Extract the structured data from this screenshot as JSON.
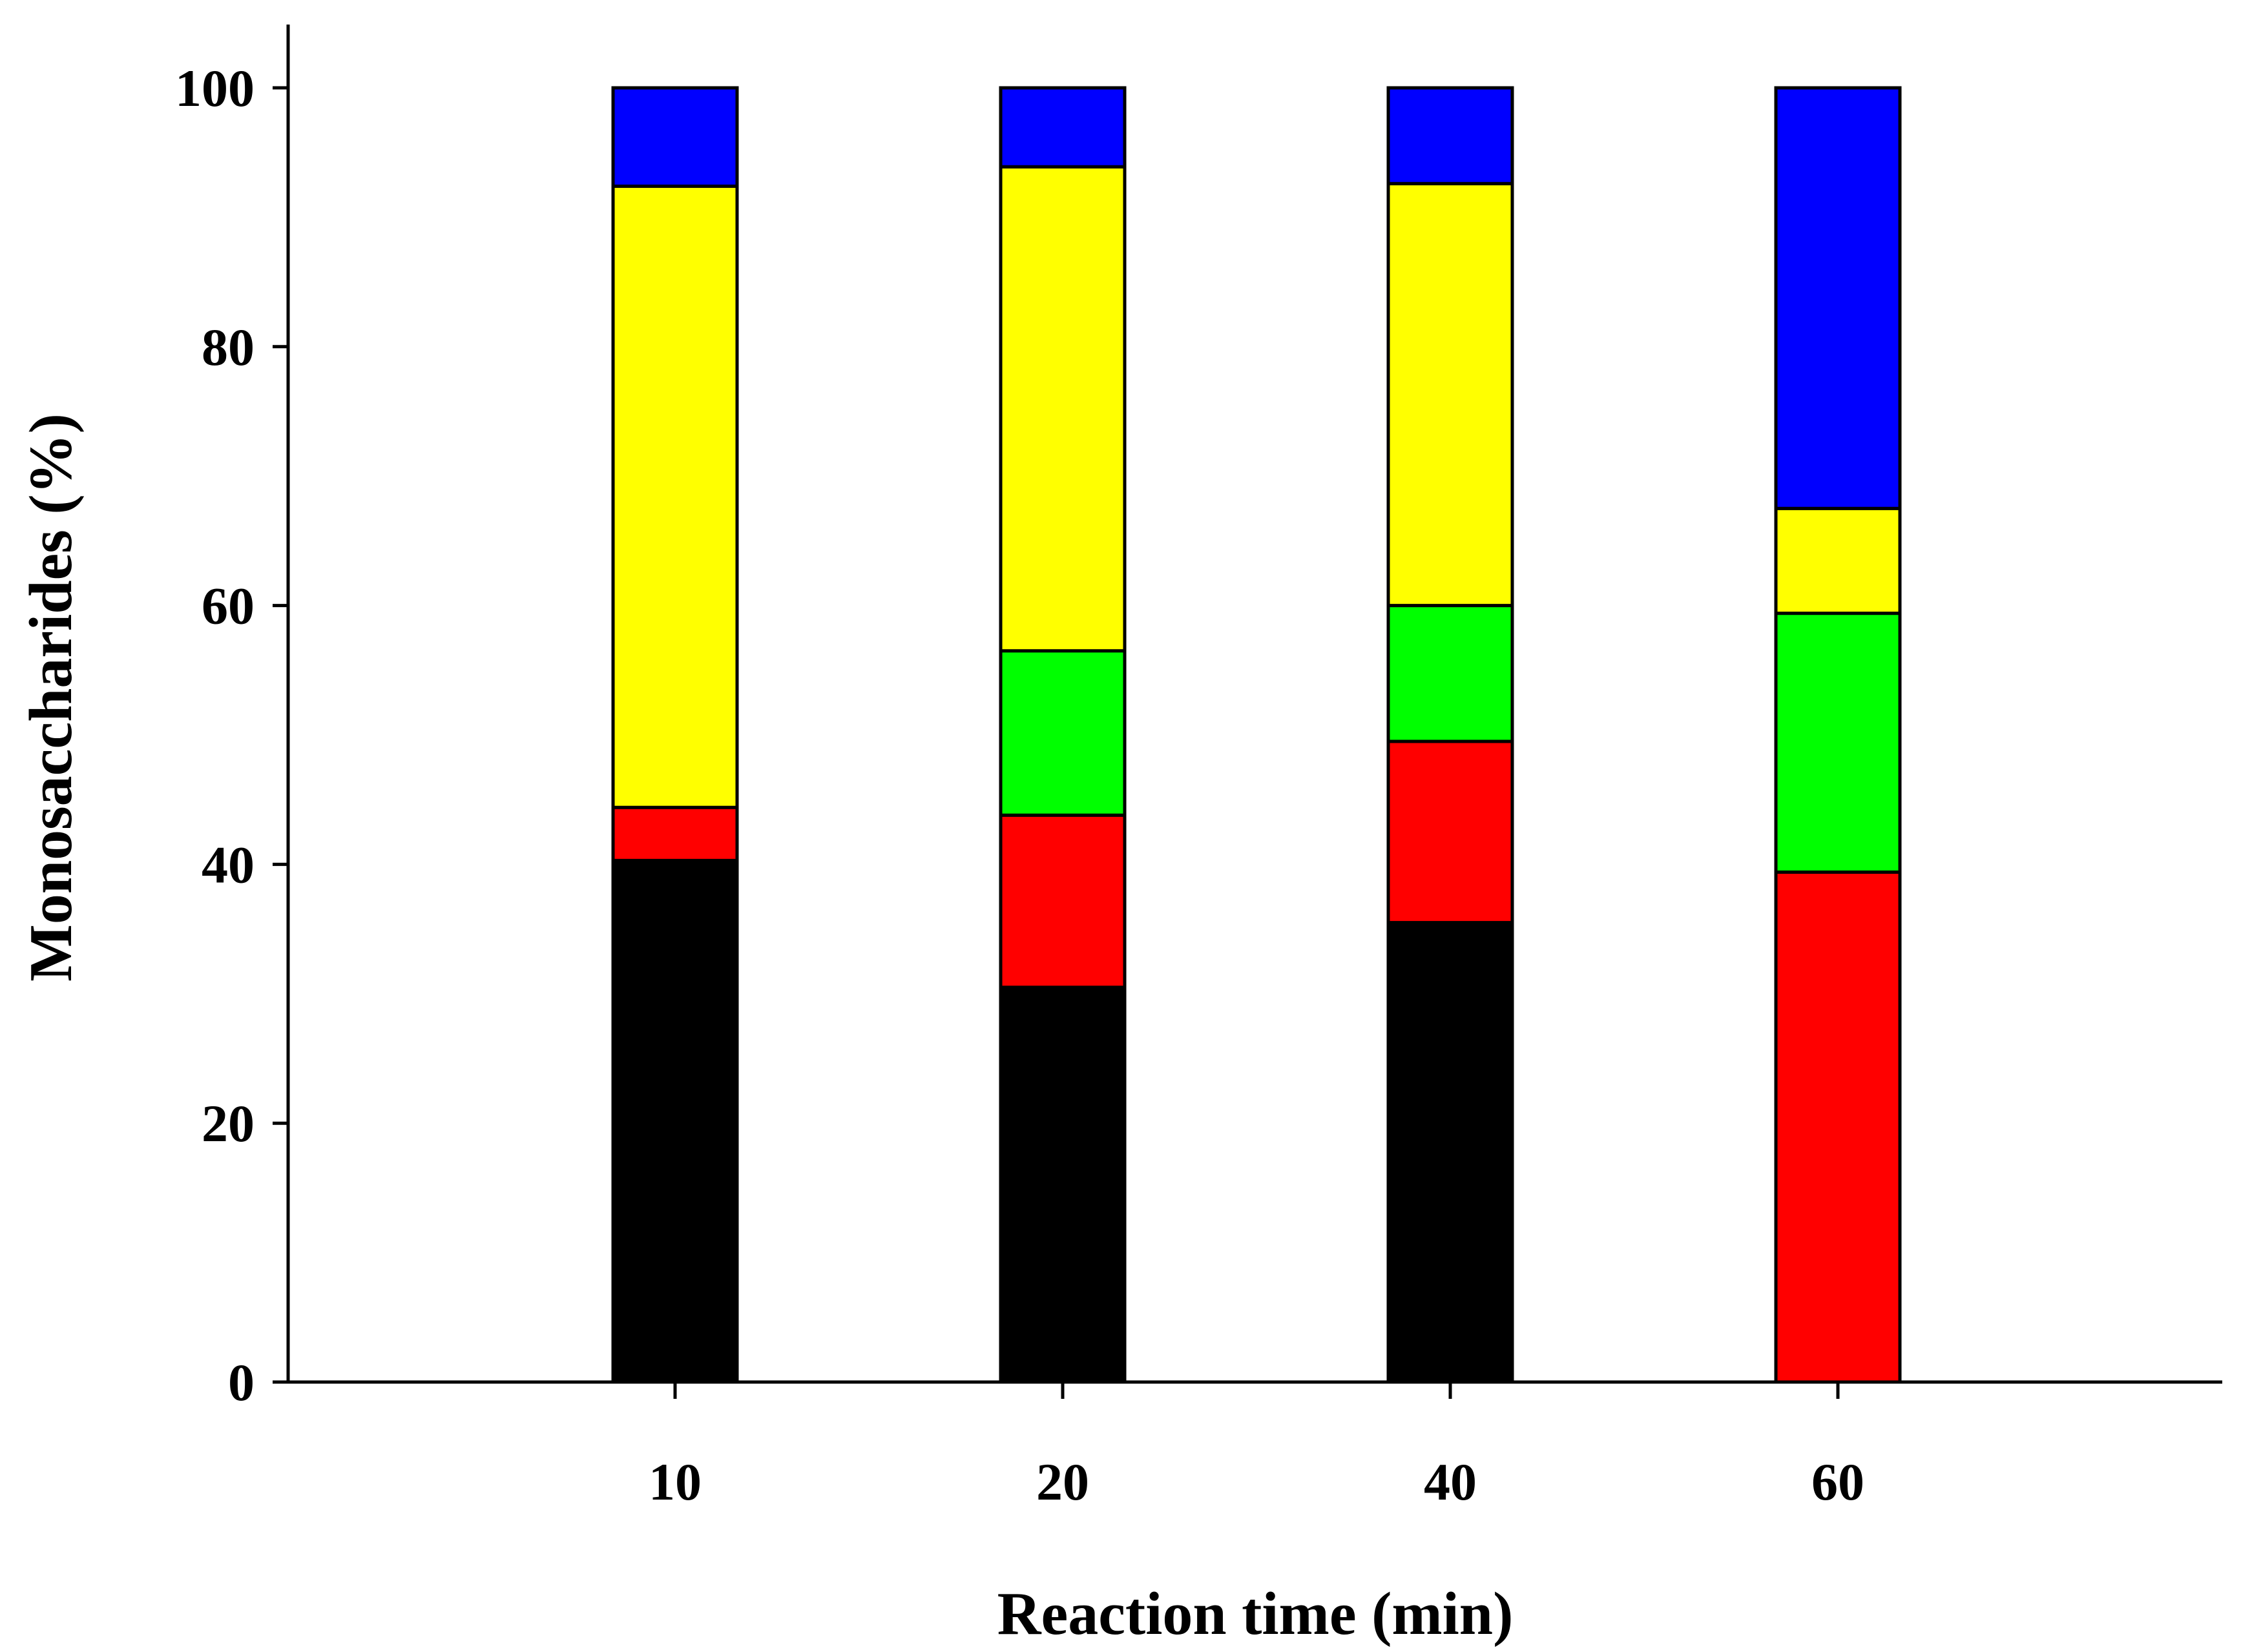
{
  "chart_data": {
    "type": "bar",
    "stacked": true,
    "title": "",
    "xlabel": "Reaction time (min)",
    "ylabel": "Monosaccharides (%)",
    "categories": [
      "10",
      "20",
      "40",
      "60"
    ],
    "ylim": [
      0,
      100
    ],
    "yticks": [
      0,
      20,
      40,
      60,
      80,
      100
    ],
    "series": [
      {
        "name": "black",
        "color": "#000000",
        "values": [
          40.3,
          30.5,
          35.5,
          0
        ]
      },
      {
        "name": "red",
        "color": "#ff0000",
        "values": [
          4.1,
          13.3,
          14.0,
          39.4
        ]
      },
      {
        "name": "green",
        "color": "#00ff00",
        "values": [
          0,
          12.7,
          10.5,
          20.0
        ]
      },
      {
        "name": "yellow",
        "color": "#ffff00",
        "values": [
          48.0,
          37.4,
          32.6,
          8.1
        ]
      },
      {
        "name": "blue",
        "color": "#0000ff",
        "values": [
          7.6,
          6.1,
          7.4,
          32.5
        ]
      }
    ]
  }
}
